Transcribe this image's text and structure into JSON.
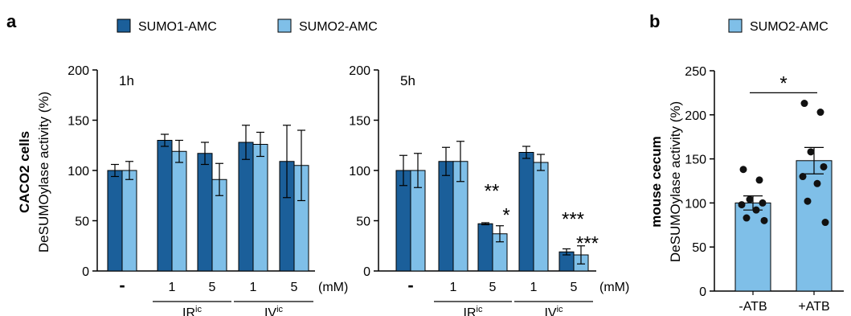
{
  "colors": {
    "sumo1": "#1b5f9a",
    "sumo2": "#7fbfe8",
    "edge": "#000000",
    "point": "#111111"
  },
  "panels": {
    "a": {
      "letter": "a",
      "ylabel_bold": "CACO2 cells",
      "ylabel": "DeSUMOylase activity (%)"
    },
    "b": {
      "letter": "b",
      "ylabel_bold": "mouse cecum",
      "ylabel": "DeSUMOylase activity (%)"
    }
  },
  "chart_data": [
    {
      "type": "bar",
      "panel": "a",
      "title": "1h",
      "categories": [
        "-",
        "1",
        "5",
        "1",
        "5"
      ],
      "unit_label": "(mM)",
      "groups": [
        {
          "label": "IR",
          "sup": "ic",
          "cats": [
            1,
            2
          ]
        },
        {
          "label": "IV",
          "sup": "ic",
          "cats": [
            3,
            4
          ]
        }
      ],
      "ylim": [
        0,
        200
      ],
      "yticks": [
        0,
        50,
        100,
        150,
        200
      ],
      "series": [
        {
          "name": "SUMO1-AMC",
          "values": [
            100,
            130,
            117,
            128,
            109
          ],
          "errors": [
            6,
            6,
            11,
            17,
            36
          ]
        },
        {
          "name": "SUMO2-AMC",
          "values": [
            100,
            119,
            91,
            126,
            105
          ],
          "errors": [
            9,
            11,
            16,
            12,
            35
          ]
        }
      ],
      "annotations": []
    },
    {
      "type": "bar",
      "panel": "a",
      "title": "5h",
      "categories": [
        "-",
        "1",
        "5",
        "1",
        "5"
      ],
      "unit_label": "(mM)",
      "groups": [
        {
          "label": "IR",
          "sup": "ic",
          "cats": [
            1,
            2
          ]
        },
        {
          "label": "IV",
          "sup": "ic",
          "cats": [
            3,
            4
          ]
        }
      ],
      "ylim": [
        0,
        200
      ],
      "yticks": [
        0,
        50,
        100,
        150,
        200
      ],
      "series": [
        {
          "name": "SUMO1-AMC",
          "values": [
            100,
            109,
            47,
            118,
            19
          ],
          "errors": [
            15,
            14,
            1,
            6,
            3
          ]
        },
        {
          "name": "SUMO2-AMC",
          "values": [
            100,
            109,
            37,
            108,
            16
          ],
          "errors": [
            17,
            20,
            8,
            8,
            9
          ]
        }
      ],
      "annotations": [
        {
          "text": "**",
          "category": 2,
          "series": 0,
          "y": 83
        },
        {
          "text": "*",
          "category": 2,
          "series": 1,
          "y": 59
        },
        {
          "text": "***",
          "category": 4,
          "series": 0,
          "y": 55
        },
        {
          "text": "***",
          "category": 4,
          "series": 1,
          "y": 31
        }
      ]
    },
    {
      "type": "bar",
      "panel": "b",
      "categories": [
        "-ATB",
        "+ATB"
      ],
      "ylim": [
        0,
        250
      ],
      "yticks": [
        0,
        50,
        100,
        150,
        200,
        250
      ],
      "series": [
        {
          "name": "SUMO2-AMC",
          "values": [
            100,
            148
          ],
          "errors": [
            8,
            15
          ]
        }
      ],
      "points": [
        [
          138,
          126,
          104,
          100,
          98,
          92,
          83,
          80
        ],
        [
          213,
          203,
          158,
          141,
          130,
          122,
          102,
          78
        ]
      ],
      "significance": {
        "text": "*",
        "between": [
          0,
          1
        ],
        "y": 225
      }
    }
  ]
}
